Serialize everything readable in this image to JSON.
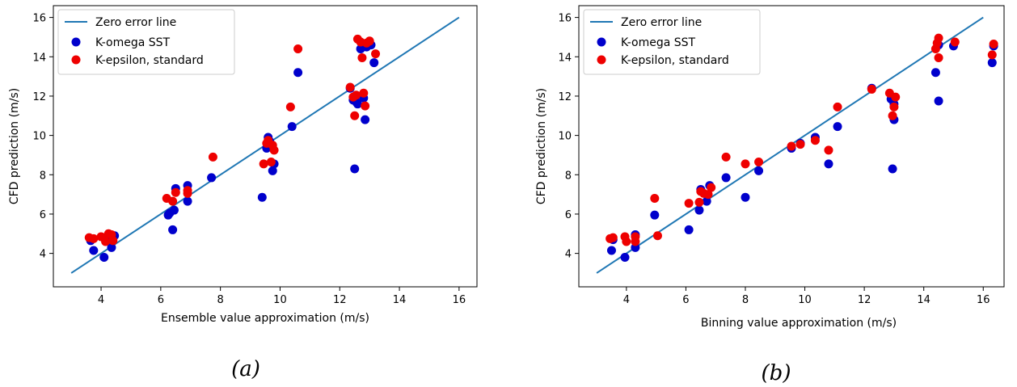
{
  "chart_data": [
    {
      "type": "scatter",
      "caption": "(a)",
      "xlabel": "Ensemble value approximation (m/s)",
      "ylabel": "CFD prediction (m/s)",
      "xlim": [
        2.4,
        16.6
      ],
      "ylim": [
        2.3,
        16.6
      ],
      "xticks": [
        4,
        6,
        8,
        10,
        12,
        14,
        16
      ],
      "yticks": [
        4,
        6,
        8,
        10,
        12,
        14,
        16
      ],
      "grid": false,
      "legend_position": "top-left",
      "zero_line": {
        "name": "Zero error line",
        "from": [
          3,
          3
        ],
        "to": [
          16,
          16
        ],
        "color": "#1f77b4"
      },
      "series": [
        {
          "name": "K-omega SST",
          "color": "#0000cc",
          "points": [
            [
              3.65,
              4.65
            ],
            [
              3.75,
              4.15
            ],
            [
              4.1,
              3.8
            ],
            [
              4.15,
              4.75
            ],
            [
              4.25,
              4.8
            ],
            [
              4.35,
              4.3
            ],
            [
              4.45,
              4.9
            ],
            [
              6.25,
              5.95
            ],
            [
              6.3,
              6.05
            ],
            [
              6.4,
              5.2
            ],
            [
              6.45,
              6.2
            ],
            [
              6.5,
              7.3
            ],
            [
              6.9,
              6.65
            ],
            [
              6.9,
              7.45
            ],
            [
              7.7,
              7.85
            ],
            [
              9.4,
              6.85
            ],
            [
              9.55,
              9.35
            ],
            [
              9.6,
              9.9
            ],
            [
              9.65,
              9.7
            ],
            [
              9.75,
              8.2
            ],
            [
              9.8,
              8.55
            ],
            [
              10.4,
              10.45
            ],
            [
              10.6,
              13.2
            ],
            [
              12.35,
              12.4
            ],
            [
              12.45,
              11.8
            ],
            [
              12.5,
              8.3
            ],
            [
              12.55,
              11.7
            ],
            [
              12.6,
              11.6
            ],
            [
              12.7,
              14.4
            ],
            [
              12.8,
              11.9
            ],
            [
              12.85,
              10.8
            ],
            [
              12.9,
              14.5
            ],
            [
              13.05,
              14.6
            ],
            [
              13.15,
              13.7
            ]
          ]
        },
        {
          "name": "K-epsilon, standard",
          "color": "#ee0000",
          "points": [
            [
              3.6,
              4.8
            ],
            [
              3.75,
              4.75
            ],
            [
              4.0,
              4.85
            ],
            [
              4.15,
              4.6
            ],
            [
              4.25,
              5.0
            ],
            [
              4.35,
              4.95
            ],
            [
              4.4,
              4.65
            ],
            [
              6.2,
              6.8
            ],
            [
              6.4,
              6.65
            ],
            [
              6.5,
              7.1
            ],
            [
              6.9,
              7.2
            ],
            [
              6.9,
              7.05
            ],
            [
              7.75,
              8.9
            ],
            [
              9.45,
              8.55
            ],
            [
              9.55,
              9.6
            ],
            [
              9.6,
              9.75
            ],
            [
              9.7,
              8.65
            ],
            [
              9.75,
              9.5
            ],
            [
              9.8,
              9.25
            ],
            [
              10.35,
              11.45
            ],
            [
              10.6,
              14.4
            ],
            [
              12.35,
              12.45
            ],
            [
              12.45,
              11.95
            ],
            [
              12.5,
              11.0
            ],
            [
              12.55,
              12.05
            ],
            [
              12.6,
              14.9
            ],
            [
              12.7,
              14.75
            ],
            [
              12.75,
              13.95
            ],
            [
              12.8,
              12.15
            ],
            [
              12.85,
              11.5
            ],
            [
              12.9,
              14.7
            ],
            [
              13.0,
              14.8
            ],
            [
              13.2,
              14.15
            ]
          ]
        }
      ]
    },
    {
      "type": "scatter",
      "caption": "(b)",
      "xlabel": "Binning value approximation (m/s)",
      "ylabel": "CFD prediction (m/s)",
      "xlim": [
        2.4,
        16.7
      ],
      "ylim": [
        2.3,
        16.6
      ],
      "xticks": [
        4,
        6,
        8,
        10,
        12,
        14,
        16
      ],
      "yticks": [
        4,
        6,
        8,
        10,
        12,
        14,
        16
      ],
      "grid": false,
      "legend_position": "top-left",
      "zero_line": {
        "name": "Zero error line",
        "from": [
          3,
          3
        ],
        "to": [
          16,
          16
        ],
        "color": "#1f77b4"
      },
      "series": [
        {
          "name": "K-omega SST",
          "color": "#0000cc",
          "points": [
            [
              3.5,
              4.15
            ],
            [
              3.55,
              4.7
            ],
            [
              3.95,
              3.8
            ],
            [
              4.3,
              4.95
            ],
            [
              4.3,
              4.3
            ],
            [
              4.95,
              5.95
            ],
            [
              6.1,
              5.2
            ],
            [
              6.45,
              6.2
            ],
            [
              6.5,
              7.25
            ],
            [
              6.7,
              6.65
            ],
            [
              6.8,
              7.45
            ],
            [
              7.35,
              7.85
            ],
            [
              8.0,
              6.85
            ],
            [
              8.45,
              8.2
            ],
            [
              9.55,
              9.35
            ],
            [
              9.85,
              9.6
            ],
            [
              10.35,
              9.9
            ],
            [
              10.8,
              8.55
            ],
            [
              11.1,
              10.45
            ],
            [
              12.25,
              12.4
            ],
            [
              12.9,
              11.85
            ],
            [
              12.95,
              8.3
            ],
            [
              13.0,
              10.8
            ],
            [
              13.0,
              11.6
            ],
            [
              14.4,
              13.2
            ],
            [
              14.5,
              11.75
            ],
            [
              14.5,
              14.6
            ],
            [
              15.0,
              14.55
            ],
            [
              16.3,
              13.7
            ],
            [
              16.35,
              14.55
            ]
          ]
        },
        {
          "name": "K-epsilon, standard",
          "color": "#ee0000",
          "points": [
            [
              3.45,
              4.75
            ],
            [
              3.55,
              4.8
            ],
            [
              3.95,
              4.85
            ],
            [
              4.0,
              4.6
            ],
            [
              4.3,
              4.85
            ],
            [
              4.3,
              4.6
            ],
            [
              4.95,
              6.8
            ],
            [
              5.05,
              4.9
            ],
            [
              6.1,
              6.55
            ],
            [
              6.45,
              6.6
            ],
            [
              6.5,
              7.15
            ],
            [
              6.6,
              7.05
            ],
            [
              6.75,
              7.0
            ],
            [
              6.85,
              7.35
            ],
            [
              7.35,
              8.9
            ],
            [
              8.0,
              8.55
            ],
            [
              8.45,
              8.65
            ],
            [
              9.55,
              9.45
            ],
            [
              9.85,
              9.55
            ],
            [
              10.35,
              9.75
            ],
            [
              10.8,
              9.25
            ],
            [
              11.1,
              11.45
            ],
            [
              12.25,
              12.35
            ],
            [
              12.85,
              12.15
            ],
            [
              12.95,
              11.0
            ],
            [
              13.0,
              11.45
            ],
            [
              13.05,
              11.95
            ],
            [
              14.4,
              14.4
            ],
            [
              14.45,
              14.7
            ],
            [
              14.5,
              14.95
            ],
            [
              14.5,
              13.95
            ],
            [
              15.05,
              14.75
            ],
            [
              16.3,
              14.1
            ],
            [
              16.35,
              14.65
            ]
          ]
        }
      ]
    }
  ]
}
